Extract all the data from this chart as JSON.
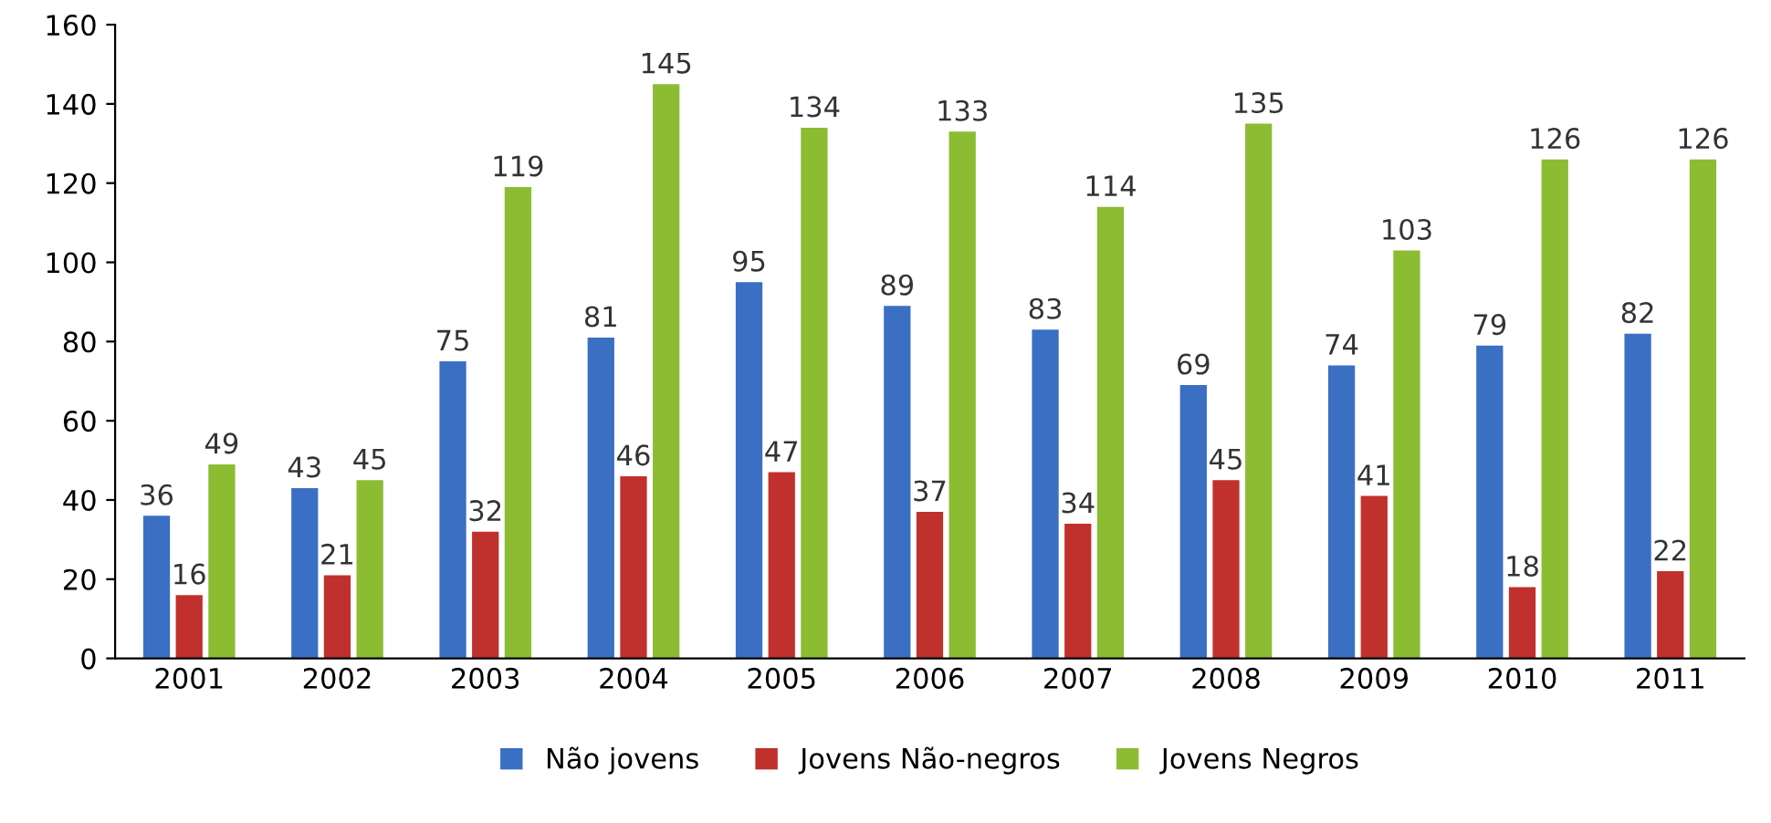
{
  "chart_data": {
    "type": "bar",
    "categories": [
      "2001",
      "2002",
      "2003",
      "2004",
      "2005",
      "2006",
      "2007",
      "2008",
      "2009",
      "2010",
      "2011"
    ],
    "series": [
      {
        "name": "Não jovens",
        "color": "#3a6fc4",
        "values": [
          36,
          43,
          75,
          81,
          95,
          89,
          83,
          69,
          74,
          79,
          82
        ]
      },
      {
        "name": "Jovens Não-negros",
        "color": "#c0302c",
        "values": [
          16,
          21,
          32,
          46,
          47,
          37,
          34,
          45,
          41,
          18,
          22
        ]
      },
      {
        "name": "Jovens Negros",
        "color": "#8cbc32",
        "values": [
          49,
          45,
          119,
          145,
          134,
          133,
          114,
          135,
          103,
          126,
          126
        ]
      }
    ],
    "ylim": [
      0,
      160
    ],
    "yticks": [
      0,
      20,
      40,
      60,
      80,
      100,
      120,
      140,
      160
    ],
    "data_labels": true,
    "legend": "bottom",
    "grid": false
  }
}
